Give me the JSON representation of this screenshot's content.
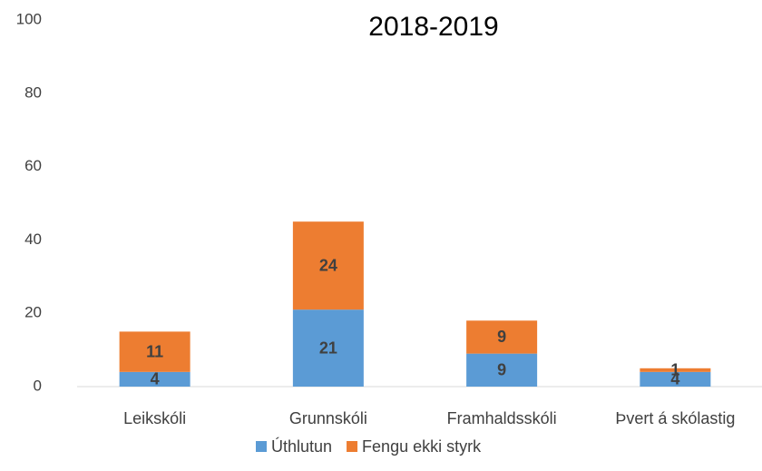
{
  "chart_data": {
    "type": "stacked_bar",
    "title": "2018-2019",
    "categories": [
      "Leikskóli",
      "Grunnskóli",
      "Framhaldsskóli",
      "Þvert á skólastig"
    ],
    "series": [
      {
        "name": "Úthlutun",
        "color": "#5b9bd5",
        "values": [
          4,
          21,
          9,
          4
        ]
      },
      {
        "name": "Fengu ekki styrk",
        "color": "#ed7d31",
        "values": [
          11,
          24,
          9,
          1
        ]
      }
    ],
    "ylim": [
      0,
      100
    ],
    "yticks": [
      0,
      20,
      40,
      60,
      80,
      100
    ],
    "grid": false,
    "legend": "bottom"
  }
}
